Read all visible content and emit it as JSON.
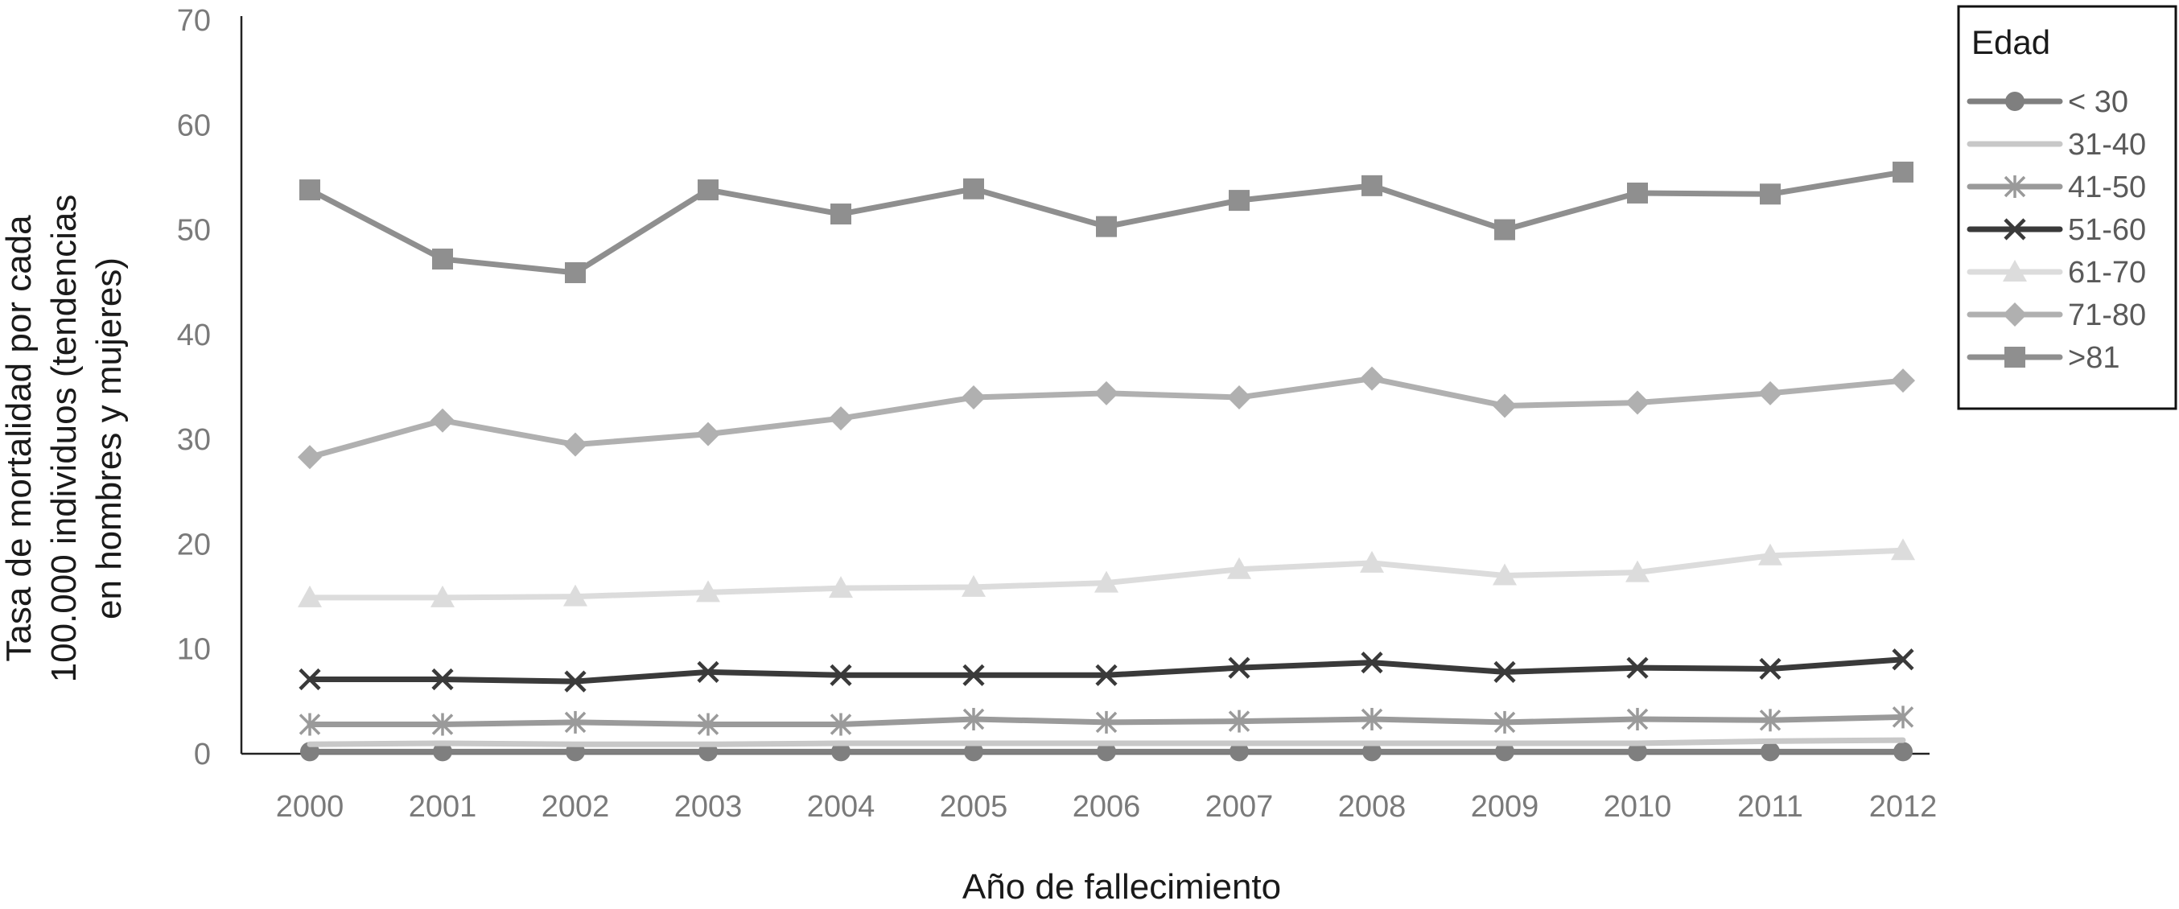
{
  "chart_data": {
    "type": "line",
    "title": "",
    "xlabel": "Año de fallecimiento",
    "ylabel_lines": [
      "Tasa de mortalidad por cada",
      "100.000 individuos (tendencias",
      "en hombres y mujeres)"
    ],
    "x": [
      "2000",
      "2001",
      "2002",
      "2003",
      "2004",
      "2005",
      "2006",
      "2007",
      "2008",
      "2009",
      "2010",
      "2011",
      "2012"
    ],
    "ylim": [
      0,
      70
    ],
    "yticks": [
      0,
      10,
      20,
      30,
      40,
      50,
      60,
      70
    ],
    "grid": false,
    "legend": {
      "title": "Edad",
      "placement": "top-right"
    },
    "series": [
      {
        "name": "< 30",
        "color": "#7f7f7f",
        "marker": "circle",
        "values": [
          0.2,
          0.2,
          0.2,
          0.2,
          0.2,
          0.2,
          0.2,
          0.2,
          0.2,
          0.2,
          0.2,
          0.2,
          0.2
        ]
      },
      {
        "name": "31-40",
        "color": "#c8c8c8",
        "marker": "none",
        "values": [
          0.9,
          1.0,
          0.9,
          0.9,
          1.0,
          1.0,
          1.0,
          1.0,
          1.0,
          1.0,
          1.0,
          1.2,
          1.3
        ]
      },
      {
        "name": "41-50",
        "color": "#9a9a9a",
        "marker": "asterisk",
        "values": [
          2.8,
          2.8,
          3.0,
          2.8,
          2.8,
          3.3,
          3.0,
          3.1,
          3.3,
          3.0,
          3.3,
          3.2,
          3.5
        ]
      },
      {
        "name": "51-60",
        "color": "#3a3a3a",
        "marker": "x",
        "values": [
          7.1,
          7.1,
          6.9,
          7.8,
          7.5,
          7.5,
          7.5,
          8.2,
          8.7,
          7.8,
          8.2,
          8.1,
          9.0
        ]
      },
      {
        "name": "61-70",
        "color": "#dcdcdc",
        "marker": "triangle",
        "values": [
          14.9,
          14.9,
          15.0,
          15.4,
          15.8,
          15.9,
          16.3,
          17.6,
          18.2,
          17.0,
          17.3,
          18.9,
          19.4
        ]
      },
      {
        "name": "71-80",
        "color": "#b0b0b0",
        "marker": "diamond",
        "values": [
          28.3,
          31.8,
          29.5,
          30.5,
          32.0,
          34.0,
          34.4,
          34.0,
          35.8,
          33.2,
          33.5,
          34.4,
          35.6
        ]
      },
      {
        "name": ">81",
        "color": "#8f8f8f",
        "marker": "square",
        "values": [
          53.8,
          47.2,
          45.9,
          53.8,
          51.5,
          53.9,
          50.3,
          52.8,
          54.2,
          50.0,
          53.5,
          53.4,
          55.5
        ]
      }
    ]
  }
}
